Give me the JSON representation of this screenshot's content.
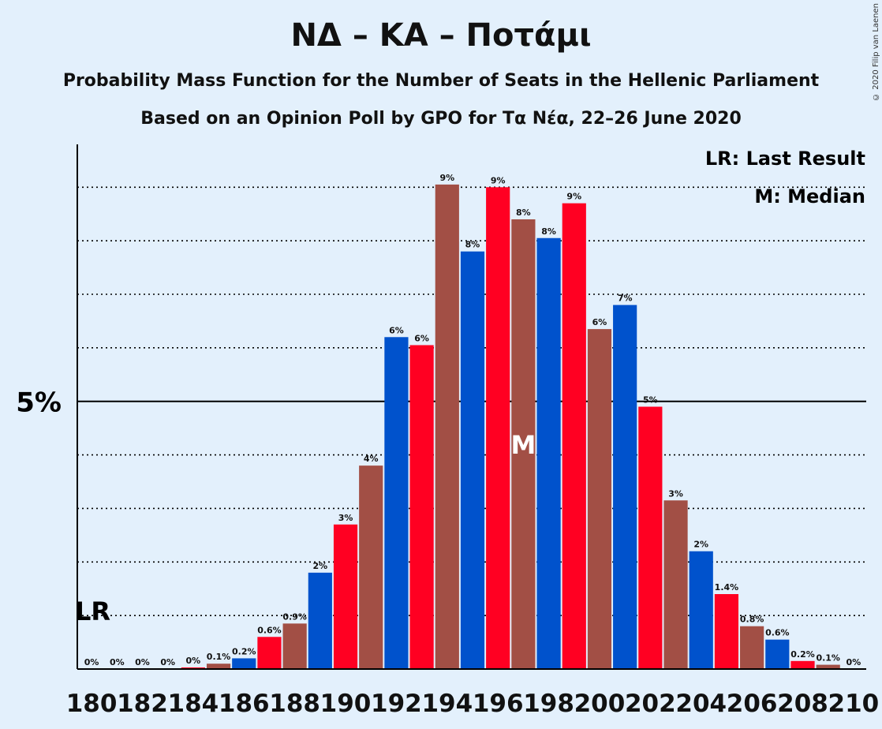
{
  "title": "ΝΔ – ΚΑ – Ποτάμι",
  "subtitle1": "Probability Mass Function for the Number of Seats in the Hellenic Parliament",
  "subtitle2": "Based on an Opinion Poll by GPO for Τα Νέα, 22–26 June 2020",
  "copyright": "© 2020 Filip van Laenen",
  "legend": {
    "lr": "LR: Last Result",
    "m": "M: Median"
  },
  "markers": {
    "lr_label": "LR",
    "median_label": "M"
  },
  "colors": {
    "bar_cycle": [
      "#0052cc",
      "#ff0022",
      "#a24f45"
    ],
    "background": "#e3f0fc"
  },
  "chart_data": {
    "type": "bar",
    "xlabel": "",
    "ylabel": "",
    "ylim": [
      0,
      9.8
    ],
    "y_tick_label": "5%",
    "y_tick_value": 5,
    "x_tick_labels": [
      "180",
      "182",
      "184",
      "186",
      "188",
      "190",
      "192",
      "194",
      "196",
      "198",
      "200",
      "202",
      "204",
      "206",
      "208",
      "210"
    ],
    "last_result_seat": 180,
    "median_seat": 197,
    "bars": [
      {
        "seat": 180,
        "value": 0,
        "label": "0%"
      },
      {
        "seat": 181,
        "value": 0,
        "label": "0%"
      },
      {
        "seat": 182,
        "value": 0,
        "label": "0%"
      },
      {
        "seat": 183,
        "value": 0,
        "label": "0%"
      },
      {
        "seat": 184,
        "value": 0.03,
        "label": "0%"
      },
      {
        "seat": 185,
        "value": 0.1,
        "label": "0.1%"
      },
      {
        "seat": 186,
        "value": 0.2,
        "label": "0.2%"
      },
      {
        "seat": 187,
        "value": 0.6,
        "label": "0.6%"
      },
      {
        "seat": 188,
        "value": 0.85,
        "label": "0.9%"
      },
      {
        "seat": 189,
        "value": 1.8,
        "label": "2%"
      },
      {
        "seat": 190,
        "value": 2.7,
        "label": "3%"
      },
      {
        "seat": 191,
        "value": 3.8,
        "label": "4%"
      },
      {
        "seat": 192,
        "value": 6.2,
        "label": "6%"
      },
      {
        "seat": 193,
        "value": 6.05,
        "label": "6%"
      },
      {
        "seat": 194,
        "value": 9.05,
        "label": "9%"
      },
      {
        "seat": 195,
        "value": 7.8,
        "label": "8%"
      },
      {
        "seat": 196,
        "value": 9.0,
        "label": "9%"
      },
      {
        "seat": 197,
        "value": 8.4,
        "label": "8%"
      },
      {
        "seat": 198,
        "value": 8.05,
        "label": "8%"
      },
      {
        "seat": 199,
        "value": 8.7,
        "label": "9%"
      },
      {
        "seat": 200,
        "value": 6.35,
        "label": "6%"
      },
      {
        "seat": 201,
        "value": 6.8,
        "label": "7%"
      },
      {
        "seat": 202,
        "value": 4.9,
        "label": "5%"
      },
      {
        "seat": 203,
        "value": 3.15,
        "label": "3%"
      },
      {
        "seat": 204,
        "value": 2.2,
        "label": "2%"
      },
      {
        "seat": 205,
        "value": 1.4,
        "label": "1.4%"
      },
      {
        "seat": 206,
        "value": 0.8,
        "label": "0.8%"
      },
      {
        "seat": 207,
        "value": 0.55,
        "label": "0.6%"
      },
      {
        "seat": 208,
        "value": 0.15,
        "label": "0.2%"
      },
      {
        "seat": 209,
        "value": 0.08,
        "label": "0.1%"
      },
      {
        "seat": 210,
        "value": 0,
        "label": "0%"
      }
    ]
  }
}
